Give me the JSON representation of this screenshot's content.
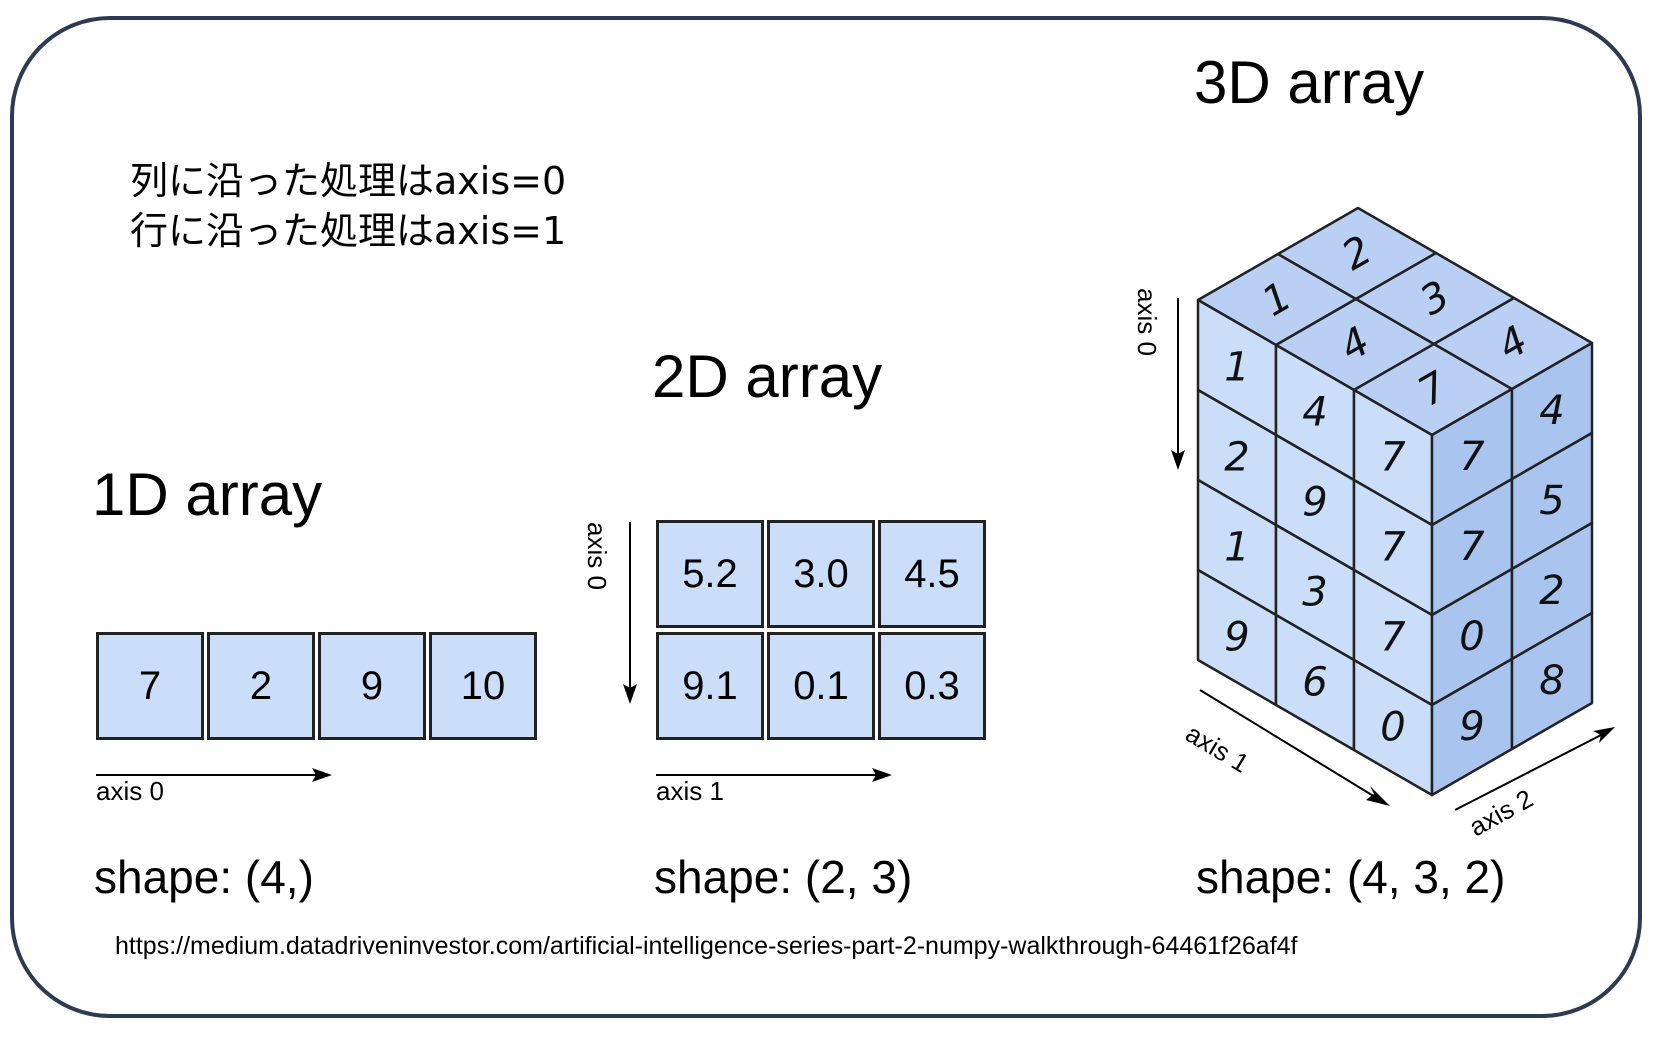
{
  "notes": [
    "列に沿った処理はaxis=0",
    "行に沿った処理はaxis=1"
  ],
  "arrays": {
    "one_d": {
      "title": "1D array",
      "values": [
        "7",
        "2",
        "9",
        "10"
      ],
      "axis_label": "axis 0",
      "shape": "shape: (4,)"
    },
    "two_d": {
      "title": "2D array",
      "rows": [
        [
          "5.2",
          "3.0",
          "4.5"
        ],
        [
          "9.1",
          "0.1",
          "0.3"
        ]
      ],
      "axis0_label": "axis 0",
      "axis1_label": "axis 1",
      "shape": "shape: (2, 3)"
    },
    "three_d": {
      "title": "3D array",
      "top_face": [
        [
          "1",
          "2"
        ],
        [
          "4",
          "3"
        ],
        [
          "7",
          "4"
        ]
      ],
      "front_face": [
        [
          "1",
          "4",
          "7"
        ],
        [
          "2",
          "9",
          "7"
        ],
        [
          "1",
          "3",
          "7"
        ],
        [
          "9",
          "6",
          "0"
        ],
        [
          "",
          "",
          "9"
        ]
      ],
      "side_face": [
        [
          "7",
          "4"
        ],
        [
          "7",
          "5"
        ],
        [
          "0",
          "2"
        ],
        [
          "9",
          "8"
        ]
      ],
      "axis0_label": "axis 0",
      "axis1_label": "axis 1",
      "axis2_label": "axis 2",
      "shape": "shape: (4, 3, 2)"
    }
  },
  "colors": {
    "frame": "#2c3b52",
    "cell_front": "#cadef9",
    "cell_top": "#b9cff3",
    "cell_side": "#a9c4ee"
  },
  "source": "https://medium.datadriveninvestor.com/artificial-intelligence-series-part-2-numpy-walkthrough-64461f26af4f"
}
